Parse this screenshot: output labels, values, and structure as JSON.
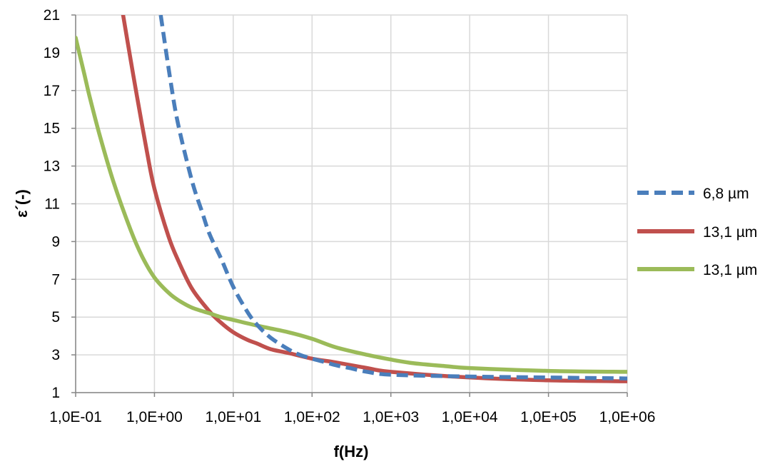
{
  "chart_data": {
    "type": "line",
    "xlabel": "f(Hz)",
    "ylabel": "ε´(-)",
    "x_scale": "log",
    "xlim": [
      0.1,
      1000000
    ],
    "ylim": [
      1,
      21
    ],
    "grid": true,
    "legend_position": "right",
    "x_ticks": [
      {
        "value": 0.1,
        "label": "1,0E-01"
      },
      {
        "value": 1,
        "label": "1,0E+00"
      },
      {
        "value": 10,
        "label": "1,0E+01"
      },
      {
        "value": 100,
        "label": "1,0E+02"
      },
      {
        "value": 1000,
        "label": "1,0E+03"
      },
      {
        "value": 10000,
        "label": "1,0E+04"
      },
      {
        "value": 100000,
        "label": "1,0E+05"
      },
      {
        "value": 1000000,
        "label": "1,0E+06"
      }
    ],
    "y_ticks": [
      {
        "value": 1,
        "label": "1"
      },
      {
        "value": 3,
        "label": "3"
      },
      {
        "value": 5,
        "label": "5"
      },
      {
        "value": 7,
        "label": "7"
      },
      {
        "value": 9,
        "label": "9"
      },
      {
        "value": 11,
        "label": "11"
      },
      {
        "value": 13,
        "label": "13"
      },
      {
        "value": 15,
        "label": "15"
      },
      {
        "value": 17,
        "label": "17"
      },
      {
        "value": 19,
        "label": "19"
      },
      {
        "value": 21,
        "label": "21"
      }
    ],
    "series": [
      {
        "name": "6,8 µm",
        "color": "#4a7ebb",
        "style": "dashed",
        "x": [
          1.2,
          1.6,
          2,
          3,
          4,
          5,
          7,
          10,
          15,
          20,
          30,
          50,
          70,
          100,
          150,
          200,
          300,
          500,
          1000,
          10000,
          100000,
          1000000
        ],
        "y": [
          21,
          17.5,
          15.2,
          12.2,
          10.6,
          9.4,
          8.1,
          6.6,
          5.3,
          4.6,
          3.9,
          3.3,
          3.0,
          2.8,
          2.6,
          2.45,
          2.3,
          2.1,
          1.95,
          1.85,
          1.8,
          1.75
        ]
      },
      {
        "name": "13,1 µm",
        "color": "#c0504d",
        "style": "solid",
        "x": [
          0.4,
          0.5,
          0.6,
          0.8,
          1,
          1.5,
          2,
          3,
          5,
          7,
          10,
          15,
          20,
          30,
          50,
          100,
          200,
          500,
          1000,
          10000,
          100000,
          1000000
        ],
        "y": [
          21,
          18.6,
          16.7,
          13.8,
          11.8,
          9.3,
          8.0,
          6.5,
          5.3,
          4.7,
          4.2,
          3.8,
          3.6,
          3.3,
          3.1,
          2.8,
          2.6,
          2.3,
          2.1,
          1.8,
          1.65,
          1.6
        ]
      },
      {
        "name": "13,1 µm",
        "color": "#9bbb59",
        "style": "solid",
        "x": [
          0.1,
          0.13,
          0.15,
          0.2,
          0.3,
          0.5,
          0.7,
          1,
          1.5,
          2,
          3,
          5,
          7,
          10,
          20,
          50,
          100,
          200,
          500,
          1000,
          2000,
          5000,
          10000,
          100000,
          1000000
        ],
        "y": [
          19.8,
          17.8,
          16.7,
          14.7,
          12.2,
          9.6,
          8.2,
          7.1,
          6.3,
          5.9,
          5.5,
          5.2,
          5.0,
          4.85,
          4.55,
          4.2,
          3.85,
          3.4,
          3.0,
          2.75,
          2.55,
          2.4,
          2.3,
          2.15,
          2.1
        ]
      }
    ]
  }
}
